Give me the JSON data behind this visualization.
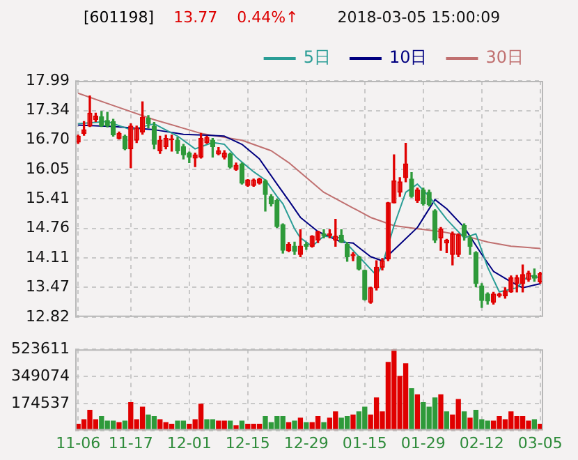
{
  "chart_data": [
    {
      "type": "candlestick",
      "title": "[601198]",
      "annotations": [
        "13.77",
        "0.44%↑",
        "2018-03-05 15:00:09"
      ],
      "categories": [
        null,
        null,
        null,
        null,
        null,
        null,
        null,
        null,
        null,
        null,
        null,
        null,
        null,
        null,
        null,
        null,
        null,
        null,
        null,
        null,
        null,
        null,
        null,
        null,
        null,
        null,
        null,
        null,
        null,
        null,
        null,
        null,
        null,
        null,
        null,
        null,
        null,
        null,
        null,
        null,
        null,
        null,
        null,
        null,
        null,
        null,
        null,
        null,
        null,
        null,
        null,
        null,
        null,
        null,
        null,
        null,
        null,
        null,
        null,
        null,
        null,
        null,
        null,
        null,
        null,
        null,
        null,
        null,
        null,
        null,
        null,
        null,
        null,
        null,
        null,
        null,
        null,
        null,
        null,
        null
      ],
      "ohlc": [
        [
          16.65,
          16.8,
          16.62,
          16.78
        ],
        [
          16.84,
          17.1,
          16.8,
          16.92
        ],
        [
          17.0,
          17.66,
          16.99,
          17.28
        ],
        [
          17.14,
          17.28,
          17.1,
          17.22
        ],
        [
          17.2,
          17.32,
          16.99,
          17.0
        ],
        [
          17.12,
          17.3,
          16.98,
          17.0
        ],
        [
          17.1,
          17.15,
          16.78,
          16.81
        ],
        [
          16.73,
          16.87,
          16.72,
          16.84
        ],
        [
          16.78,
          16.8,
          16.48,
          16.5
        ],
        [
          16.5,
          17.05,
          16.09,
          17.0
        ],
        [
          16.69,
          17.0,
          16.64,
          16.96
        ],
        [
          16.87,
          17.53,
          16.82,
          17.19
        ],
        [
          17.17,
          17.23,
          16.96,
          17.05
        ],
        [
          17.0,
          17.08,
          16.5,
          16.6
        ],
        [
          16.46,
          16.78,
          16.4,
          16.69
        ],
        [
          16.55,
          16.8,
          16.5,
          16.73
        ],
        [
          16.7,
          16.8,
          16.45,
          16.72
        ],
        [
          16.69,
          16.75,
          16.4,
          16.46
        ],
        [
          16.55,
          16.6,
          16.28,
          16.37
        ],
        [
          16.41,
          16.43,
          16.2,
          16.32
        ],
        [
          16.3,
          16.41,
          16.11,
          16.37
        ],
        [
          16.32,
          16.84,
          16.3,
          16.73
        ],
        [
          16.64,
          16.78,
          16.62,
          16.75
        ],
        [
          16.69,
          16.73,
          16.32,
          16.55
        ],
        [
          16.39,
          16.53,
          16.37,
          16.46
        ],
        [
          16.32,
          16.46,
          16.28,
          16.41
        ],
        [
          16.39,
          16.41,
          16.08,
          16.1
        ],
        [
          16.05,
          16.19,
          16.03,
          16.14
        ],
        [
          16.17,
          16.19,
          15.73,
          15.75
        ],
        [
          15.7,
          15.83,
          15.68,
          15.82
        ],
        [
          15.7,
          15.84,
          15.68,
          15.82
        ],
        [
          15.75,
          15.86,
          15.73,
          15.84
        ],
        [
          15.8,
          15.82,
          15.14,
          15.5
        ],
        [
          15.46,
          15.5,
          15.25,
          15.3
        ],
        [
          15.37,
          15.4,
          14.78,
          14.8
        ],
        [
          14.84,
          14.86,
          14.22,
          14.28
        ],
        [
          14.27,
          14.45,
          14.25,
          14.41
        ],
        [
          14.37,
          14.46,
          14.19,
          14.26
        ],
        [
          14.19,
          14.73,
          14.14,
          14.37
        ],
        [
          14.41,
          14.45,
          14.3,
          14.37
        ],
        [
          14.37,
          14.6,
          14.35,
          14.59
        ],
        [
          14.5,
          14.7,
          14.45,
          14.69
        ],
        [
          14.64,
          14.73,
          14.55,
          14.6
        ],
        [
          14.6,
          14.73,
          14.55,
          14.64
        ],
        [
          14.5,
          14.96,
          14.37,
          14.59
        ],
        [
          14.61,
          14.73,
          14.45,
          14.46
        ],
        [
          14.41,
          14.45,
          14.04,
          14.14
        ],
        [
          14.16,
          14.23,
          14.05,
          14.19
        ],
        [
          14.14,
          14.15,
          13.85,
          13.87
        ],
        [
          13.84,
          13.85,
          13.19,
          13.2
        ],
        [
          13.14,
          13.47,
          13.12,
          13.46
        ],
        [
          13.46,
          14.05,
          13.41,
          13.91
        ],
        [
          13.91,
          14.1,
          13.85,
          14.05
        ],
        [
          14.09,
          15.33,
          14.05,
          15.32
        ],
        [
          15.32,
          16.37,
          15.32,
          15.8
        ],
        [
          15.55,
          15.87,
          15.46,
          15.78
        ],
        [
          15.87,
          16.62,
          15.78,
          16.17
        ],
        [
          15.84,
          15.98,
          15.44,
          15.46
        ],
        [
          15.37,
          15.64,
          15.33,
          15.6
        ],
        [
          15.6,
          15.64,
          15.27,
          15.3
        ],
        [
          15.55,
          15.6,
          15.25,
          15.28
        ],
        [
          15.14,
          15.17,
          14.45,
          14.5
        ],
        [
          14.55,
          14.78,
          14.28,
          14.75
        ],
        [
          14.44,
          14.52,
          14.23,
          14.5
        ],
        [
          14.19,
          14.68,
          13.96,
          14.64
        ],
        [
          14.19,
          14.64,
          14.14,
          14.62
        ],
        [
          14.82,
          14.86,
          14.5,
          14.59
        ],
        [
          14.55,
          14.6,
          14.19,
          14.37
        ],
        [
          14.23,
          14.25,
          13.48,
          13.55
        ],
        [
          13.5,
          13.55,
          13.03,
          13.18
        ],
        [
          13.32,
          13.35,
          13.1,
          13.17
        ],
        [
          13.14,
          13.36,
          13.1,
          13.32
        ],
        [
          13.28,
          13.34,
          13.26,
          13.32
        ],
        [
          13.28,
          13.46,
          13.23,
          13.39
        ],
        [
          13.37,
          13.72,
          13.36,
          13.68
        ],
        [
          13.55,
          13.73,
          13.37,
          13.68
        ],
        [
          13.55,
          13.96,
          13.37,
          13.75
        ],
        [
          13.64,
          13.82,
          13.6,
          13.78
        ],
        [
          13.73,
          13.87,
          13.6,
          13.67
        ],
        [
          13.59,
          13.8,
          13.56,
          13.77
        ]
      ],
      "colors": [
        "#e00000",
        "#e00000",
        "#e00000",
        "#e00000",
        "#2e9a3a",
        "#2e9a3a",
        "#2e9a3a",
        "#e00000",
        "#2e9a3a",
        "#e00000",
        "#e00000",
        "#e00000",
        "#2e9a3a",
        "#2e9a3a",
        "#e00000",
        "#e00000",
        "#e00000",
        "#2e9a3a",
        "#2e9a3a",
        "#2e9a3a",
        "#e00000",
        "#e00000",
        "#e00000",
        "#2e9a3a",
        "#e00000",
        "#e00000",
        "#2e9a3a",
        "#e00000",
        "#2e9a3a",
        "#e00000",
        "#e00000",
        "#e00000",
        "#2e9a3a",
        "#2e9a3a",
        "#2e9a3a",
        "#2e9a3a",
        "#e00000",
        "#2e9a3a",
        "#e00000",
        "#2e9a3a",
        "#e00000",
        "#e00000",
        "#2e9a3a",
        "#e00000",
        "#e00000",
        "#2e9a3a",
        "#2e9a3a",
        "#e00000",
        "#2e9a3a",
        "#2e9a3a",
        "#e00000",
        "#e00000",
        "#e00000",
        "#e00000",
        "#e00000",
        "#e00000",
        "#e00000",
        "#2e9a3a",
        "#e00000",
        "#2e9a3a",
        "#2e9a3a",
        "#2e9a3a",
        "#e00000",
        "#e00000",
        "#e00000",
        "#e00000",
        "#2e9a3a",
        "#2e9a3a",
        "#2e9a3a",
        "#2e9a3a",
        "#2e9a3a",
        "#e00000",
        "#e00000",
        "#e00000",
        "#e00000",
        "#e00000",
        "#e00000",
        "#e00000",
        "#2e9a3a",
        "#e00000"
      ],
      "series": [
        {
          "type": "line",
          "name": "5日",
          "color": "#2a9d96",
          "values": [
            17.05,
            null,
            null,
            null,
            null,
            17.1,
            null,
            null,
            null,
            16.92,
            null,
            null,
            null,
            17.05,
            null,
            null,
            null,
            16.78,
            null,
            null,
            16.5,
            null,
            null,
            16.64,
            null,
            16.6,
            null,
            16.32,
            null,
            null,
            16.0,
            null,
            15.82,
            null,
            15.46,
            15.3,
            null,
            14.75,
            14.55,
            null,
            14.37,
            null,
            14.59,
            null,
            null,
            14.55,
            null,
            null,
            14.14,
            null,
            null,
            13.73,
            13.96,
            null,
            14.82,
            null,
            15.55,
            null,
            15.73,
            null,
            15.46,
            null,
            null,
            14.96,
            null,
            null,
            14.55,
            null,
            14.64,
            null,
            13.91,
            null,
            13.37,
            null,
            null,
            13.46,
            null,
            13.73,
            null,
            13.68
          ]
        },
        {
          "type": "line",
          "name": "10日",
          "color": "#000080",
          "values": [
            17.02,
            null,
            null,
            null,
            null,
            null,
            16.99,
            null,
            null,
            null,
            null,
            null,
            null,
            16.92,
            null,
            null,
            null,
            null,
            16.82,
            null,
            null,
            null,
            16.8,
            null,
            null,
            16.78,
            null,
            null,
            16.6,
            null,
            null,
            16.28,
            null,
            null,
            15.73,
            null,
            15.37,
            null,
            15.0,
            null,
            null,
            14.69,
            null,
            null,
            null,
            14.46,
            null,
            14.44,
            null,
            null,
            14.14,
            null,
            14.05,
            null,
            null,
            14.41,
            null,
            null,
            14.78,
            null,
            null,
            15.39,
            null,
            15.19,
            null,
            null,
            14.78,
            null,
            null,
            14.19,
            null,
            13.82,
            null,
            null,
            13.59,
            null,
            13.46,
            null,
            null,
            13.55
          ]
        },
        {
          "type": "line",
          "name": "30日",
          "color": "#c07070",
          "values": [
            17.72,
            null,
            null,
            null,
            null,
            null,
            17.45,
            null,
            null,
            null,
            null,
            null,
            null,
            17.14,
            null,
            null,
            null,
            null,
            null,
            null,
            null,
            16.84,
            null,
            null,
            null,
            null,
            null,
            null,
            16.69,
            null,
            null,
            null,
            null,
            16.46,
            null,
            null,
            16.2,
            null,
            null,
            null,
            null,
            null,
            15.55,
            null,
            null,
            null,
            null,
            null,
            null,
            null,
            15.0,
            null,
            null,
            null,
            14.82,
            null,
            null,
            null,
            14.75,
            null,
            null,
            null,
            14.69,
            null,
            null,
            null,
            14.6,
            null,
            null,
            null,
            14.46,
            null,
            null,
            null,
            14.37,
            null,
            null,
            null,
            null,
            14.32
          ]
        }
      ],
      "ylim": [
        12.82,
        17.99
      ],
      "yticks": [
        12.82,
        13.47,
        14.11,
        14.76,
        15.41,
        16.05,
        {
          "value": 16.7,
          "label": "16.70"
        },
        17.34,
        17.99
      ],
      "grid": true,
      "legend": "top right",
      "tick_labels": "y"
    },
    {
      "type": "bar",
      "categories": [
        "11-06",
        null,
        null,
        null,
        null,
        null,
        null,
        null,
        null,
        "11-17",
        null,
        null,
        null,
        null,
        null,
        null,
        null,
        null,
        null,
        "12-01",
        null,
        null,
        null,
        null,
        null,
        null,
        null,
        null,
        null,
        "12-15",
        null,
        null,
        null,
        null,
        null,
        null,
        null,
        null,
        null,
        "12-29",
        null,
        null,
        null,
        null,
        null,
        null,
        null,
        null,
        null,
        "01-15",
        null,
        null,
        null,
        null,
        null,
        null,
        null,
        null,
        null,
        "01-29",
        null,
        null,
        null,
        null,
        null,
        null,
        null,
        null,
        null,
        "02-12",
        null,
        null,
        null,
        null,
        null,
        null,
        null,
        null,
        null,
        "03-05"
      ],
      "values": [
        40000,
        70000,
        130000,
        70000,
        90000,
        60000,
        60000,
        50000,
        60000,
        180000,
        70000,
        150000,
        100000,
        90000,
        70000,
        50000,
        40000,
        60000,
        60000,
        40000,
        70000,
        170000,
        70000,
        70000,
        60000,
        60000,
        60000,
        30000,
        60000,
        40000,
        40000,
        40000,
        90000,
        50000,
        90000,
        90000,
        50000,
        60000,
        80000,
        50000,
        50000,
        90000,
        50000,
        80000,
        120000,
        80000,
        90000,
        100000,
        120000,
        150000,
        100000,
        210000,
        120000,
        440000,
        520000,
        350000,
        430000,
        270000,
        230000,
        180000,
        150000,
        210000,
        230000,
        120000,
        100000,
        200000,
        120000,
        80000,
        130000,
        70000,
        60000,
        60000,
        90000,
        70000,
        120000,
        90000,
        90000,
        60000,
        70000,
        40000
      ],
      "colors": [
        "#e00000",
        "#e00000",
        "#e00000",
        "#e00000",
        "#2e9a3a",
        "#2e9a3a",
        "#2e9a3a",
        "#e00000",
        "#2e9a3a",
        "#e00000",
        "#e00000",
        "#e00000",
        "#2e9a3a",
        "#2e9a3a",
        "#e00000",
        "#e00000",
        "#e00000",
        "#2e9a3a",
        "#2e9a3a",
        "#e00000",
        "#e00000",
        "#e00000",
        "#2e9a3a",
        "#2e9a3a",
        "#e00000",
        "#e00000",
        "#2e9a3a",
        "#e00000",
        "#2e9a3a",
        "#e00000",
        "#e00000",
        "#e00000",
        "#2e9a3a",
        "#2e9a3a",
        "#2e9a3a",
        "#2e9a3a",
        "#e00000",
        "#2e9a3a",
        "#e00000",
        "#2e9a3a",
        "#e00000",
        "#e00000",
        "#2e9a3a",
        "#e00000",
        "#e00000",
        "#2e9a3a",
        "#2e9a3a",
        "#e00000",
        "#2e9a3a",
        "#2e9a3a",
        "#e00000",
        "#e00000",
        "#e00000",
        "#e00000",
        "#e00000",
        "#e00000",
        "#e00000",
        "#2e9a3a",
        "#e00000",
        "#2e9a3a",
        "#2e9a3a",
        "#2e9a3a",
        "#e00000",
        "#2e9a3a",
        "#e00000",
        "#e00000",
        "#2e9a3a",
        "#e00000",
        "#2e9a3a",
        "#2e9a3a",
        "#2e9a3a",
        "#e00000",
        "#e00000",
        "#e00000",
        "#e00000",
        "#e00000",
        "#e00000",
        "#e00000",
        "#2e9a3a",
        "#e00000"
      ],
      "ylim": [
        0,
        523611
      ],
      "yticks": [
        {
          "value": 0,
          "label": null
        },
        174537,
        349074,
        523611
      ],
      "grid": true
    }
  ]
}
